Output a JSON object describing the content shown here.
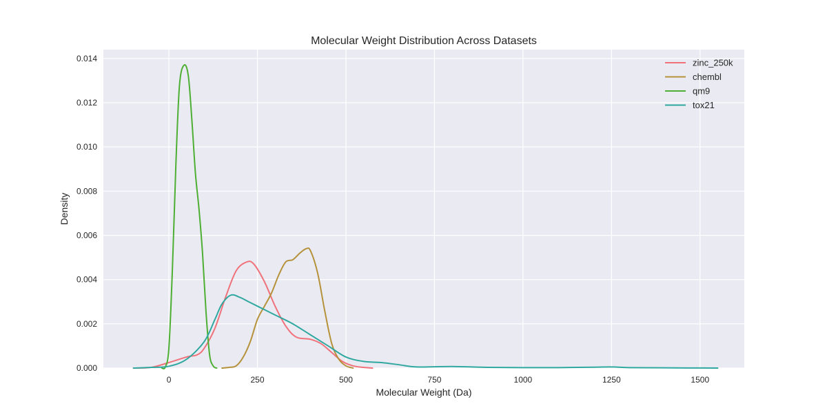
{
  "chart_data": {
    "type": "line",
    "title": "Molecular Weight Distribution Across Datasets",
    "xlabel": "Molecular Weight (Da)",
    "ylabel": "Density",
    "xlim": [
      -185,
      1625
    ],
    "ylim": [
      0,
      0.0144
    ],
    "grid": true,
    "legend_position": "top-right",
    "x_ticks": [
      0,
      250,
      500,
      750,
      1000,
      1250,
      1500
    ],
    "x_tick_labels": [
      "0",
      "250",
      "500",
      "750",
      "1000",
      "1250",
      "1500"
    ],
    "y_ticks": [
      0,
      0.002,
      0.004,
      0.006,
      0.008,
      0.01,
      0.012,
      0.014
    ],
    "y_tick_labels": [
      "0.000",
      "0.002",
      "0.004",
      "0.006",
      "0.008",
      "0.010",
      "0.012",
      "0.014"
    ],
    "series": [
      {
        "name": "zinc_250k",
        "color": "#f0717a",
        "points": [
          [
            -100,
            0.0
          ],
          [
            -50,
            3e-05
          ],
          [
            0,
            0.00025
          ],
          [
            50,
            0.0005
          ],
          [
            80,
            0.0006
          ],
          [
            100,
            0.0009
          ],
          [
            130,
            0.0018
          ],
          [
            160,
            0.0032
          ],
          [
            190,
            0.0044
          ],
          [
            220,
            0.0048
          ],
          [
            240,
            0.0047
          ],
          [
            270,
            0.0039
          ],
          [
            300,
            0.0028
          ],
          [
            330,
            0.0019
          ],
          [
            360,
            0.0014
          ],
          [
            400,
            0.0013
          ],
          [
            430,
            0.0011
          ],
          [
            460,
            0.0007
          ],
          [
            490,
            0.0003
          ],
          [
            520,
            0.0001
          ],
          [
            550,
            3e-05
          ],
          [
            575,
            0.0
          ]
        ]
      },
      {
        "name": "chembl",
        "color": "#b5923a",
        "points": [
          [
            150,
            0.0
          ],
          [
            170,
            3e-05
          ],
          [
            190,
            0.0001
          ],
          [
            210,
            0.0005
          ],
          [
            230,
            0.0012
          ],
          [
            250,
            0.0022
          ],
          [
            270,
            0.0028
          ],
          [
            290,
            0.0034
          ],
          [
            310,
            0.0042
          ],
          [
            330,
            0.0048
          ],
          [
            350,
            0.0049
          ],
          [
            370,
            0.0052
          ],
          [
            388,
            0.0054
          ],
          [
            400,
            0.0053
          ],
          [
            420,
            0.0043
          ],
          [
            440,
            0.0026
          ],
          [
            460,
            0.0011
          ],
          [
            480,
            0.0004
          ],
          [
            500,
            0.0001
          ],
          [
            520,
            0.0
          ]
        ]
      },
      {
        "name": "qm9",
        "color": "#4daf32",
        "points": [
          [
            -20,
            0.0
          ],
          [
            -10,
            5e-05
          ],
          [
            0,
            0.0009
          ],
          [
            10,
            0.0045
          ],
          [
            20,
            0.0093
          ],
          [
            30,
            0.0128
          ],
          [
            43,
            0.0137
          ],
          [
            55,
            0.0132
          ],
          [
            65,
            0.0112
          ],
          [
            75,
            0.0088
          ],
          [
            85,
            0.0072
          ],
          [
            95,
            0.0052
          ],
          [
            105,
            0.0025
          ],
          [
            115,
            0.0006
          ],
          [
            125,
            0.0001
          ],
          [
            135,
            0.0
          ]
        ]
      },
      {
        "name": "tox21",
        "color": "#2fa8a0",
        "points": [
          [
            -100,
            0.0
          ],
          [
            -50,
            3e-05
          ],
          [
            0,
            8e-05
          ],
          [
            50,
            0.0004
          ],
          [
            100,
            0.0012
          ],
          [
            130,
            0.0022
          ],
          [
            150,
            0.0029
          ],
          [
            175,
            0.0033
          ],
          [
            200,
            0.0032
          ],
          [
            225,
            0.003
          ],
          [
            250,
            0.0028
          ],
          [
            300,
            0.0024
          ],
          [
            350,
            0.002
          ],
          [
            400,
            0.0015
          ],
          [
            450,
            0.001
          ],
          [
            500,
            0.0005
          ],
          [
            550,
            0.0003
          ],
          [
            600,
            0.00025
          ],
          [
            650,
            0.00015
          ],
          [
            700,
            5e-05
          ],
          [
            800,
            7e-05
          ],
          [
            900,
            3e-05
          ],
          [
            1000,
            2e-05
          ],
          [
            1100,
            2e-05
          ],
          [
            1200,
            4e-05
          ],
          [
            1250,
            5e-05
          ],
          [
            1300,
            2e-05
          ],
          [
            1400,
            1e-05
          ],
          [
            1550,
            0.0
          ]
        ]
      }
    ]
  }
}
